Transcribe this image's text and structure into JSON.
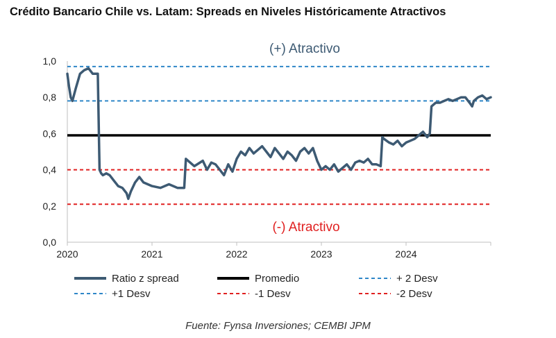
{
  "chart_data": {
    "type": "line",
    "title": "Crédito Bancario Chile vs. Latam: Spreads en Niveles Históricamente Atractivos",
    "ylim": [
      0,
      1
    ],
    "yticks": [
      "0,0",
      "0,2",
      "0,4",
      "0,6",
      "0,8",
      "1,0"
    ],
    "xlim": [
      "2020-01",
      "2025-01"
    ],
    "xticks": [
      "2020",
      "2021",
      "2022",
      "2023",
      "2024"
    ],
    "grid": false,
    "legend_position": "bottom",
    "annotations": {
      "top": "(+) Atractivo",
      "bottom": "(-) Atractivo"
    },
    "series": [
      {
        "name": "Ratio  z spread",
        "color": "#3d5a73",
        "style": "solid",
        "x": [
          2020.0,
          2020.02,
          2020.04,
          2020.06,
          2020.1,
          2020.15,
          2020.2,
          2020.25,
          2020.3,
          2020.36,
          2020.38,
          2020.4,
          2020.42,
          2020.46,
          2020.5,
          2020.55,
          2020.6,
          2020.65,
          2020.7,
          2020.72,
          2020.75,
          2020.8,
          2020.85,
          2020.9,
          2021.0,
          2021.1,
          2021.2,
          2021.3,
          2021.38,
          2021.4,
          2021.45,
          2021.5,
          2021.6,
          2021.65,
          2021.7,
          2021.75,
          2021.8,
          2021.85,
          2021.9,
          2021.95,
          2022.0,
          2022.05,
          2022.1,
          2022.15,
          2022.2,
          2022.25,
          2022.3,
          2022.35,
          2022.4,
          2022.45,
          2022.5,
          2022.55,
          2022.6,
          2022.65,
          2022.7,
          2022.75,
          2022.8,
          2022.85,
          2022.9,
          2022.95,
          2023.0,
          2023.05,
          2023.1,
          2023.15,
          2023.2,
          2023.25,
          2023.3,
          2023.35,
          2023.4,
          2023.45,
          2023.5,
          2023.55,
          2023.6,
          2023.65,
          2023.7,
          2023.72,
          2023.74,
          2023.8,
          2023.85,
          2023.9,
          2023.95,
          2024.0,
          2024.05,
          2024.1,
          2024.15,
          2024.2,
          2024.25,
          2024.28,
          2024.3,
          2024.35,
          2024.4,
          2024.45,
          2024.5,
          2024.55,
          2024.6,
          2024.65,
          2024.7,
          2024.75,
          2024.78,
          2024.8,
          2024.85,
          2024.9,
          2024.95,
          2025.0
        ],
        "values": [
          0.93,
          0.86,
          0.8,
          0.78,
          0.85,
          0.93,
          0.95,
          0.96,
          0.93,
          0.93,
          0.4,
          0.38,
          0.37,
          0.38,
          0.37,
          0.34,
          0.31,
          0.3,
          0.27,
          0.24,
          0.28,
          0.33,
          0.36,
          0.33,
          0.31,
          0.3,
          0.32,
          0.3,
          0.3,
          0.46,
          0.44,
          0.42,
          0.45,
          0.4,
          0.44,
          0.43,
          0.4,
          0.37,
          0.43,
          0.39,
          0.46,
          0.5,
          0.48,
          0.52,
          0.49,
          0.51,
          0.53,
          0.5,
          0.47,
          0.52,
          0.49,
          0.46,
          0.5,
          0.48,
          0.45,
          0.5,
          0.52,
          0.49,
          0.52,
          0.45,
          0.4,
          0.42,
          0.4,
          0.43,
          0.39,
          0.41,
          0.43,
          0.4,
          0.44,
          0.45,
          0.44,
          0.46,
          0.43,
          0.43,
          0.42,
          0.58,
          0.57,
          0.55,
          0.54,
          0.56,
          0.53,
          0.55,
          0.56,
          0.57,
          0.59,
          0.61,
          0.58,
          0.6,
          0.75,
          0.77,
          0.77,
          0.78,
          0.79,
          0.78,
          0.79,
          0.8,
          0.8,
          0.77,
          0.75,
          0.78,
          0.8,
          0.81,
          0.79,
          0.8
        ]
      },
      {
        "name": "Promedio",
        "color": "#000000",
        "style": "solid",
        "constant": 0.59
      },
      {
        "name": "+ 2 Desv",
        "color": "#2e86c8",
        "style": "dashed",
        "constant": 0.97
      },
      {
        "name": "+1 Desv",
        "color": "#2e86c8",
        "style": "dashed",
        "constant": 0.78
      },
      {
        "name": "-1 Desv",
        "color": "#e02020",
        "style": "dashed",
        "constant": 0.4
      },
      {
        "name": "-2 Desv",
        "color": "#e02020",
        "style": "dashed",
        "constant": 0.21
      }
    ]
  },
  "source": "Fuente: Fynsa Inversiones; CEMBI JPM",
  "colors": {
    "axis": "#bfbfbf",
    "annotation_top": "#3d5a73",
    "annotation_bottom": "#e02020"
  }
}
